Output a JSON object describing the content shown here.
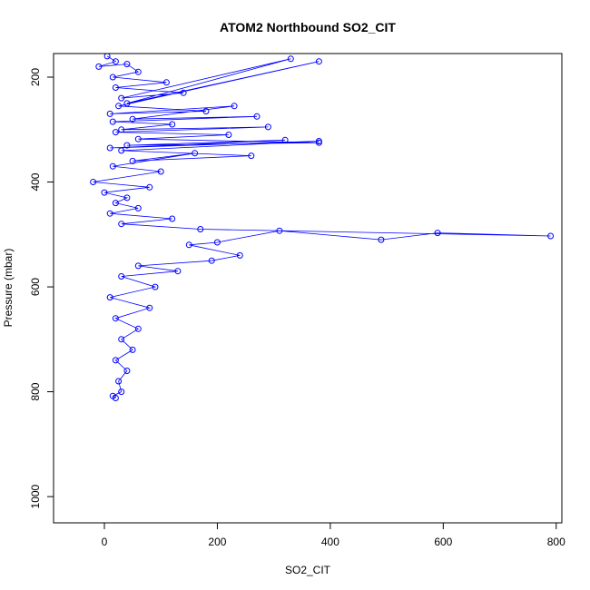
{
  "chart_data": {
    "type": "line",
    "title": "ATOM2 Northbound SO2_CIT",
    "xlabel": "SO2_CIT",
    "ylabel": "Pressure (mbar)",
    "xlim": [
      -90,
      810
    ],
    "ylim": [
      1050,
      155
    ],
    "y_reversed": true,
    "xticks": [
      0,
      200,
      400,
      600,
      800
    ],
    "yticks": [
      200,
      400,
      600,
      800,
      1000
    ],
    "grid": false,
    "marker": "open-circle",
    "color": "#0000ff",
    "series": [
      {
        "x": [
          5,
          20,
          -10,
          40,
          60,
          15,
          110,
          20,
          140,
          30,
          330,
          40,
          380,
          25,
          180,
          10,
          230,
          50,
          270,
          15,
          120,
          30,
          290,
          20,
          220,
          60,
          380,
          40,
          320,
          10,
          380,
          30,
          260,
          50,
          160,
          15,
          100,
          -20,
          80,
          0,
          40,
          20,
          60,
          10,
          120,
          30,
          170,
          790,
          590,
          490,
          310,
          200,
          150,
          240,
          190,
          60,
          130,
          30,
          90,
          10,
          80,
          20,
          60,
          30,
          50,
          20,
          40,
          25,
          30,
          15,
          20
        ],
        "y": [
          160,
          170,
          180,
          175,
          190,
          200,
          210,
          220,
          230,
          240,
          165,
          250,
          170,
          255,
          265,
          270,
          255,
          280,
          275,
          285,
          290,
          300,
          295,
          305,
          310,
          318,
          325,
          330,
          320,
          335,
          322,
          340,
          350,
          360,
          345,
          370,
          380,
          400,
          410,
          420,
          430,
          440,
          450,
          460,
          470,
          480,
          490,
          503,
          497,
          510,
          493,
          515,
          520,
          540,
          550,
          560,
          570,
          580,
          600,
          620,
          640,
          660,
          680,
          700,
          720,
          740,
          760,
          780,
          800,
          808,
          812
        ]
      }
    ]
  }
}
